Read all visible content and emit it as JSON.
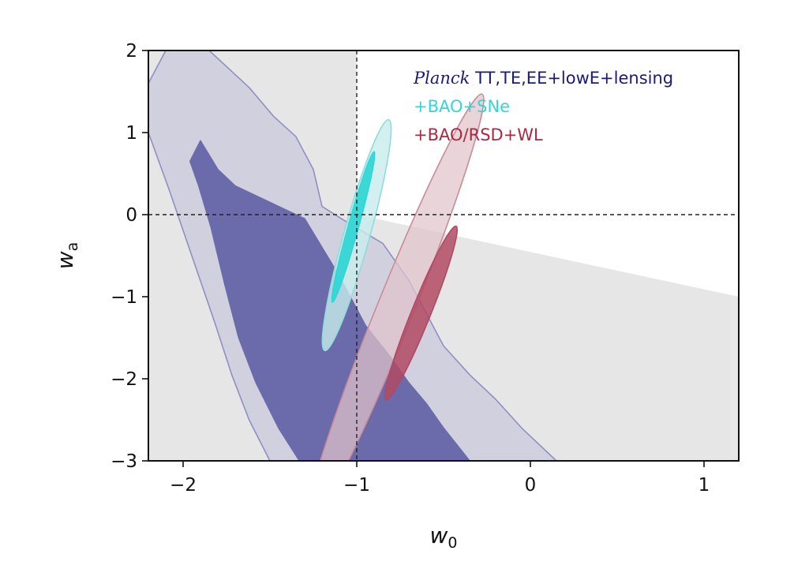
{
  "chart_data": {
    "type": "contour",
    "xlabel": {
      "base": "w",
      "sub": "0"
    },
    "ylabel": {
      "base": "w",
      "sub": "a"
    },
    "xlim": [
      -2.2,
      1.2
    ],
    "ylim": [
      -3,
      2
    ],
    "xticks": [
      -2,
      -1,
      0,
      1
    ],
    "yticks": [
      -3,
      -2,
      -1,
      0,
      1,
      2
    ],
    "xtick_labels": [
      "−2",
      "−1",
      "0",
      "1"
    ],
    "ytick_labels": [
      "−3",
      "−2",
      "−1",
      "0",
      "1",
      "2"
    ],
    "grid": false,
    "legend_position": "top-right",
    "reference_lines": {
      "vertical_x": -1,
      "horizontal_y": 0,
      "style": "dashed"
    },
    "shaded_region": {
      "description": "",
      "polygon": [
        [
          -2.2,
          2
        ],
        [
          -1,
          2
        ],
        [
          -1,
          0
        ],
        [
          1.2,
          -1
        ],
        [
          1.2,
          -3
        ],
        [
          -2.2,
          -3
        ]
      ],
      "color": "#e6e6e6"
    },
    "series": [
      {
        "name": "Planck TT,TE,EE+lowE+lensing",
        "legend_italic": "Planck",
        "legend_rest": " TT,TE,EE+lowE+lensing",
        "color": "#1a1a7a",
        "contours": [
          {
            "level": "95%",
            "fill": "#d0d0de",
            "stroke": "#8f8fc4",
            "points": [
              [
                -2.2,
                1.0
              ],
              [
                -2.2,
                1.6
              ],
              [
                -2.1,
                2.0
              ],
              [
                -1.85,
                2.0
              ],
              [
                -1.62,
                1.55
              ],
              [
                -1.48,
                1.2
              ],
              [
                -1.35,
                0.95
              ],
              [
                -1.25,
                0.55
              ],
              [
                -1.2,
                0.1
              ],
              [
                -1.05,
                -0.1
              ],
              [
                -0.85,
                -0.35
              ],
              [
                -0.7,
                -0.8
              ],
              [
                -0.5,
                -1.6
              ],
              [
                -0.35,
                -1.95
              ],
              [
                -0.2,
                -2.25
              ],
              [
                -0.05,
                -2.6
              ],
              [
                0.15,
                -3.0
              ],
              [
                -1.5,
                -3.0
              ],
              [
                -1.62,
                -2.5
              ],
              [
                -1.72,
                -1.95
              ],
              [
                -1.82,
                -1.3
              ],
              [
                -1.95,
                -0.5
              ],
              [
                -2.08,
                0.3
              ],
              [
                -2.2,
                1.0
              ]
            ]
          },
          {
            "level": "68%",
            "fill": "#6b6aab",
            "stroke": "#6b6aab",
            "points": [
              [
                -1.96,
                0.65
              ],
              [
                -1.9,
                0.9
              ],
              [
                -1.8,
                0.55
              ],
              [
                -1.7,
                0.35
              ],
              [
                -1.55,
                0.2
              ],
              [
                -1.4,
                0.05
              ],
              [
                -1.3,
                -0.05
              ],
              [
                -1.2,
                -0.4
              ],
              [
                -1.1,
                -0.75
              ],
              [
                -1.05,
                -0.95
              ],
              [
                -0.95,
                -1.35
              ],
              [
                -0.8,
                -1.75
              ],
              [
                -0.7,
                -2.05
              ],
              [
                -0.6,
                -2.3
              ],
              [
                -0.5,
                -2.6
              ],
              [
                -0.35,
                -3.0
              ],
              [
                -1.33,
                -3.0
              ],
              [
                -1.45,
                -2.6
              ],
              [
                -1.58,
                -2.05
              ],
              [
                -1.68,
                -1.5
              ],
              [
                -1.76,
                -0.85
              ],
              [
                -1.84,
                -0.15
              ],
              [
                -1.91,
                0.35
              ],
              [
                -1.96,
                0.65
              ]
            ]
          }
        ]
      },
      {
        "name": "+BAO+SNe",
        "legend_text": "+BAO+SNe",
        "color": "#33d6d6",
        "contours": [
          {
            "level": "95%",
            "fill": "#c8ecec",
            "stroke": "#8fdcdc",
            "fill_opacity": 0.8,
            "ellipse": {
              "cx": -1.0,
              "cy": -0.25,
              "rx": 0.69,
              "ry": 0.075,
              "angle_deg": -74.5
            }
          },
          {
            "level": "68%",
            "fill": "#33d6d6",
            "stroke": "#33d6d6",
            "fill_opacity": 0.95,
            "ellipse": {
              "cx": -1.02,
              "cy": -0.15,
              "rx": 0.45,
              "ry": 0.03,
              "angle_deg": -74.5
            }
          }
        ]
      },
      {
        "name": "+BAO/RSD+WL",
        "legend_text": "+BAO/RSD+WL",
        "color": "#a82a42",
        "contours": [
          {
            "level": "95%",
            "fill": "#e0c4ca",
            "stroke": "#c88c98",
            "fill_opacity": 0.72,
            "ellipse": {
              "cx": -0.78,
              "cy": -1.16,
              "rx": 1.34,
              "ry": 0.105,
              "angle_deg": -68
            }
          },
          {
            "level": "68%",
            "fill": "#b04a64",
            "stroke": "#b04a64",
            "fill_opacity": 0.85,
            "ellipse": {
              "cx": -0.63,
              "cy": -1.2,
              "rx": 0.54,
              "ry": 0.055,
              "angle_deg": -68
            }
          }
        ]
      }
    ]
  }
}
